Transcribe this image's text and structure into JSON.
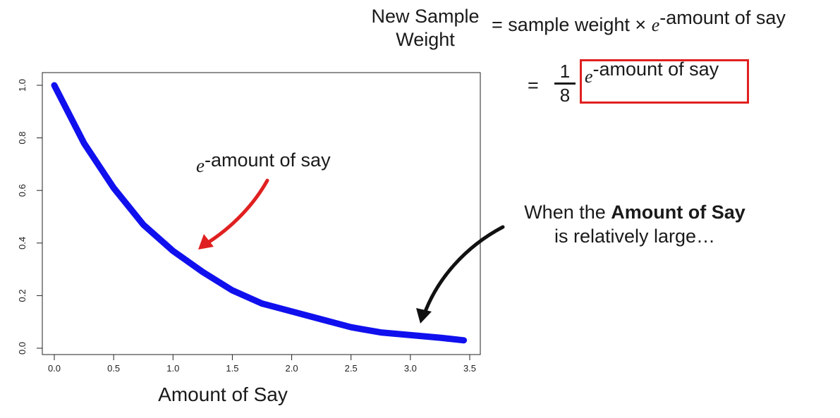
{
  "equation": {
    "lhs_label": "New Sample Weight",
    "equals": "=",
    "sample_weight": "sample weight",
    "times": "×",
    "e": "e",
    "exponent": "-amount of say",
    "second_equals": "=",
    "fraction_numerator": "1",
    "fraction_denominator": "8",
    "boxed_e": "e",
    "boxed_exponent": "-amount of say",
    "box_color": "#e02020"
  },
  "annotations": {
    "curve_label_e": "e",
    "curve_label_exponent": "-amount of say",
    "curve_arrow_color": "#e02020",
    "large_note_prefix": "When the ",
    "large_note_bold": "Amount of Say",
    "large_note_line2": "is relatively large…",
    "large_arrow_color": "#111111"
  },
  "chart_data": {
    "type": "line",
    "title": "",
    "xlabel": "Amount of Say",
    "ylabel": "",
    "xlim": [
      0,
      3.5
    ],
    "ylim": [
      0,
      1.0
    ],
    "x_ticks": [
      "0.0",
      "0.5",
      "1.0",
      "1.5",
      "2.0",
      "2.5",
      "3.0",
      "3.5"
    ],
    "y_ticks": [
      "0.0",
      "0.2",
      "0.4",
      "0.6",
      "0.8",
      "1.0"
    ],
    "grid": false,
    "series": [
      {
        "color": "#1010ee",
        "x": [
          0,
          0.25,
          0.5,
          0.75,
          1.0,
          1.25,
          1.5,
          1.75,
          2.0,
          2.25,
          2.5,
          2.75,
          3.0,
          3.25,
          3.45
        ],
        "y": [
          1.0,
          0.78,
          0.61,
          0.47,
          0.37,
          0.29,
          0.22,
          0.17,
          0.14,
          0.11,
          0.08,
          0.06,
          0.05,
          0.04,
          0.03
        ]
      }
    ]
  }
}
